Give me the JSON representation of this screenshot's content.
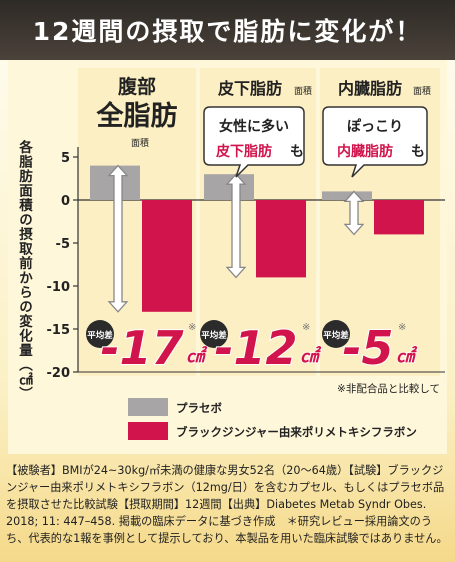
{
  "title": "12週間の摂取で脂肪に変化が！",
  "chart_data": {
    "type": "bar",
    "ylabel": "各脂肪面積の摂取前からの変化量（㎠）",
    "ylim": [
      -20,
      5
    ],
    "yticks": [
      5,
      0,
      -5,
      -10,
      -15,
      -20
    ],
    "ytick_labels": [
      "5",
      "0",
      "-5",
      "-10",
      "-15",
      "-20"
    ],
    "categories": [
      "腹部全脂肪",
      "皮下脂肪",
      "内臓脂肪"
    ],
    "series": [
      {
        "name": "プラセボ",
        "color": "#a8a5a6",
        "values": [
          4,
          3,
          1
        ]
      },
      {
        "name": "ブラックジンジャー由来ポリメトキシフラボン",
        "color": "#d1154c",
        "values": [
          -13,
          -9,
          -4
        ]
      }
    ],
    "group_headers": [
      {
        "line1": "腹部",
        "line2": "全脂肪",
        "sub": "面積"
      },
      {
        "line1": "皮下脂肪",
        "sub": "面積"
      },
      {
        "line1": "内臓脂肪",
        "sub": "面積"
      }
    ],
    "callouts": [
      {
        "line1": "女性に多い",
        "highlight": "皮下脂肪",
        "suffix": "も"
      },
      {
        "line1": "ぽっこり",
        "highlight": "内臓脂肪",
        "suffix": "も"
      }
    ],
    "differences": [
      {
        "badge": "平均差",
        "value": "-17",
        "unit": "㎠",
        "mark": "※"
      },
      {
        "badge": "平均差",
        "value": "-12",
        "unit": "㎠",
        "mark": "※"
      },
      {
        "badge": "平均差",
        "value": "-5",
        "unit": "㎠",
        "mark": "※"
      }
    ],
    "note": "※非配合品と比較して",
    "legend": [
      "プラセボ",
      "ブラックジンジャー由来ポリメトキシフラボン"
    ]
  },
  "footnote": "【被験者】BMIが24~30kg/㎡未満の健康な男女52名（20～64歳）【試験】ブラックジンジャー由来ポリメトキシフラボン（12mg/日）を含むカプセル、もしくはプラセボ品を摂取させた比較試験【摂取期間】12週間【出典】Diabetes Metab Syndr Obes. 2018; 11: 447–458. 掲載の臨床データに基づき作成　＊研究レビュー採用論文のうち、代表的な1報を事例として提示しており、本製品を用いた臨床試験ではありません。"
}
